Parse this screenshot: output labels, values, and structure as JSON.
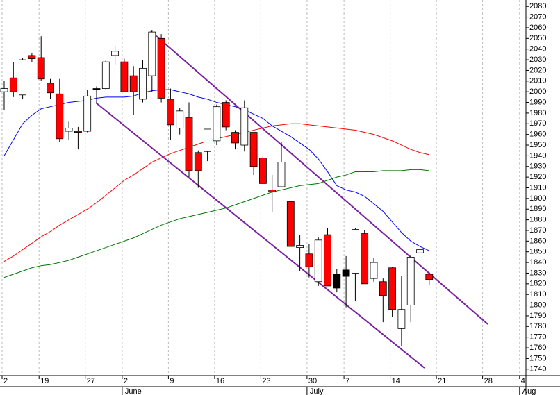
{
  "chart_data": {
    "type": "candlestick",
    "categories": [
      "2",
      null,
      null,
      null,
      "19",
      null,
      null,
      null,
      null,
      "27",
      null,
      null,
      null,
      "2",
      null,
      null,
      null,
      null,
      "9",
      null,
      null,
      null,
      null,
      "16",
      null,
      null,
      null,
      null,
      "23",
      null,
      null,
      null,
      null,
      "30",
      null,
      null,
      null,
      "7",
      null,
      null,
      null,
      null,
      "14",
      null,
      null,
      null,
      null,
      "21",
      null,
      null,
      null,
      null,
      "28",
      null,
      null,
      null,
      "4"
    ],
    "month_categories": [
      null,
      null,
      null,
      null,
      null,
      null,
      null,
      null,
      null,
      null,
      null,
      null,
      null,
      "June",
      null,
      null,
      null,
      null,
      null,
      null,
      null,
      null,
      null,
      null,
      null,
      null,
      null,
      null,
      null,
      null,
      null,
      null,
      null,
      "July",
      null,
      null,
      null,
      null,
      null,
      null,
      null,
      null,
      null,
      null,
      null,
      null,
      null,
      null,
      null,
      null,
      null,
      null,
      null,
      null,
      null,
      null,
      "Aug"
    ],
    "open": [
      2000,
      2013,
      1997,
      2034,
      2032,
      2008,
      1998,
      1963,
      1963,
      1963,
      2002,
      2003,
      2034,
      2028,
      2015,
      1993,
      2015,
      2050,
      1993,
      1966,
      1976,
      1943,
      1944,
      1954,
      1990,
      1962,
      1950,
      1962,
      1938,
      1908,
      1911,
      1897,
      1854,
      1848,
      1822,
      1866,
      1829,
      1827,
      1830,
      1867,
      1825,
      1822,
      1835,
      1778,
      1800,
      1849,
      1829,
      null,
      null,
      null,
      null,
      null,
      null,
      null,
      null,
      null,
      null
    ],
    "high": [
      2010,
      2028,
      2032,
      2036,
      2052,
      2012,
      2012,
      1972,
      1967,
      2002,
      2005,
      2030,
      2043,
      2031,
      2024,
      2030,
      2058,
      2054,
      2003,
      1985,
      1990,
      1945,
      1965,
      1988,
      1992,
      1964,
      1992,
      1962,
      1940,
      1922,
      1953,
      1897,
      1866,
      1857,
      1864,
      1872,
      1834,
      1846,
      1872,
      1870,
      1844,
      1825,
      1836,
      1827,
      1847,
      1864,
      1831,
      null,
      null,
      null,
      null,
      null,
      null,
      null,
      null,
      null,
      null
    ],
    "low": [
      1983,
      1995,
      1993,
      2028,
      2010,
      1993,
      1953,
      1955,
      1946,
      1962,
      1989,
      2002,
      2025,
      2000,
      1978,
      1990,
      2000,
      1990,
      1955,
      1960,
      1920,
      1910,
      1935,
      1950,
      1964,
      1946,
      1944,
      1922,
      1913,
      1887,
      1911,
      1855,
      1832,
      1826,
      1818,
      1818,
      1812,
      1798,
      1804,
      1820,
      1822,
      1784,
      1789,
      1762,
      1784,
      1837,
      1819,
      null,
      null,
      null,
      null,
      null,
      null,
      null,
      null,
      null,
      null
    ],
    "close": [
      2003,
      2000,
      2030,
      2031,
      2012,
      1999,
      1956,
      1966,
      1962,
      1996,
      2003,
      2028,
      2038,
      2000,
      2000,
      2022,
      2056,
      1994,
      1969,
      1982,
      1926,
      1926,
      1965,
      1986,
      1967,
      1952,
      1985,
      1930,
      1914,
      1906,
      1934,
      1855,
      1856,
      1836,
      1861,
      1818,
      1816,
      1833,
      1871,
      1820,
      1840,
      1809,
      1796,
      1796,
      1845,
      1852,
      1824,
      null,
      null,
      null,
      null,
      null,
      null,
      null,
      null,
      null,
      null
    ],
    "candle_colors": [
      "#ffffff",
      "#ff0000",
      "#ffffff",
      "#ff0000",
      "#ff0000",
      "#ff0000",
      "#ff0000",
      "#ffffff",
      "#ff0000",
      "#ffffff",
      "#000000",
      "#ffffff",
      "#ffffff",
      "#ff0000",
      "#ff0000",
      "#ffffff",
      "#ffffff",
      "#ff0000",
      "#ff0000",
      "#ffffff",
      "#ff0000",
      "#ff0000",
      "#ffffff",
      "#ffffff",
      "#ff0000",
      "#ff0000",
      "#ffffff",
      "#ff0000",
      "#ff0000",
      "#ff0000",
      "#ffffff",
      "#ff0000",
      "#ffffff",
      "#ff0000",
      "#ffffff",
      "#ff0000",
      "#000000",
      "#000000",
      "#ffffff",
      "#ff0000",
      "#ffffff",
      "#ff0000",
      "#ff0000",
      "#ffffff",
      "#ffffff",
      "#ffffff",
      "#ff0000",
      null,
      null,
      null,
      null,
      null,
      null,
      null,
      null,
      null,
      null
    ],
    "moving_averages": [
      {
        "color": "#0000ff",
        "values": [
          1940,
          1955,
          1970,
          1978,
          1984,
          1986,
          1988,
          1990,
          1991,
          1992,
          1994,
          1995,
          1995,
          1995,
          1996,
          1999,
          2001,
          2002,
          2002,
          2000,
          1998,
          1995,
          1993,
          1990,
          1988,
          1986,
          1983,
          1979,
          1975,
          1968,
          1963,
          1958,
          1952,
          1946,
          1937,
          1925,
          1912,
          1908,
          1906,
          1902,
          1895,
          1888,
          1878,
          1868,
          1860,
          1855,
          1851,
          null,
          null,
          null,
          null,
          null,
          null,
          null,
          null,
          null,
          null
        ]
      },
      {
        "color": "#ff0000",
        "values": [
          1841,
          1846,
          1852,
          1858,
          1864,
          1869,
          1875,
          1880,
          1885,
          1890,
          1896,
          1903,
          1910,
          1917,
          1922,
          1928,
          1934,
          1938,
          1942,
          1945,
          1948,
          1951,
          1954,
          1956,
          1958,
          1960,
          1962,
          1964,
          1966,
          1968,
          1969,
          1970,
          1970,
          1969,
          1968,
          1967,
          1966,
          1965,
          1964,
          1962,
          1960,
          1957,
          1954,
          1950,
          1946,
          1943,
          1941,
          null,
          null,
          null,
          null,
          null,
          null,
          null,
          null,
          null,
          null
        ]
      },
      {
        "color": "#007700",
        "values": [
          1826,
          1829,
          1832,
          1835,
          1837,
          1838,
          1840,
          1842,
          1845,
          1848,
          1851,
          1854,
          1857,
          1860,
          1863,
          1867,
          1871,
          1875,
          1878,
          1881,
          1883,
          1885,
          1887,
          1889,
          1891,
          1894,
          1897,
          1900,
          1903,
          1906,
          1908,
          1910,
          1912,
          1913,
          1914,
          1917,
          1920,
          1922,
          1925,
          1925,
          1925,
          1926,
          1926,
          1926,
          1927,
          1927,
          1926,
          null,
          null,
          null,
          null,
          null,
          null,
          null,
          null,
          null,
          null
        ]
      }
    ],
    "ylim": [
      1734,
      2086
    ],
    "yticks": [
      1740,
      1750,
      1760,
      1770,
      1780,
      1790,
      1800,
      1810,
      1820,
      1830,
      1840,
      1850,
      1860,
      1870,
      1880,
      1890,
      1900,
      1910,
      1920,
      1930,
      1940,
      1950,
      1960,
      1970,
      1980,
      1990,
      2000,
      2010,
      2020,
      2030,
      2040,
      2050,
      2060,
      2070,
      2080
    ],
    "grid": true
  }
}
